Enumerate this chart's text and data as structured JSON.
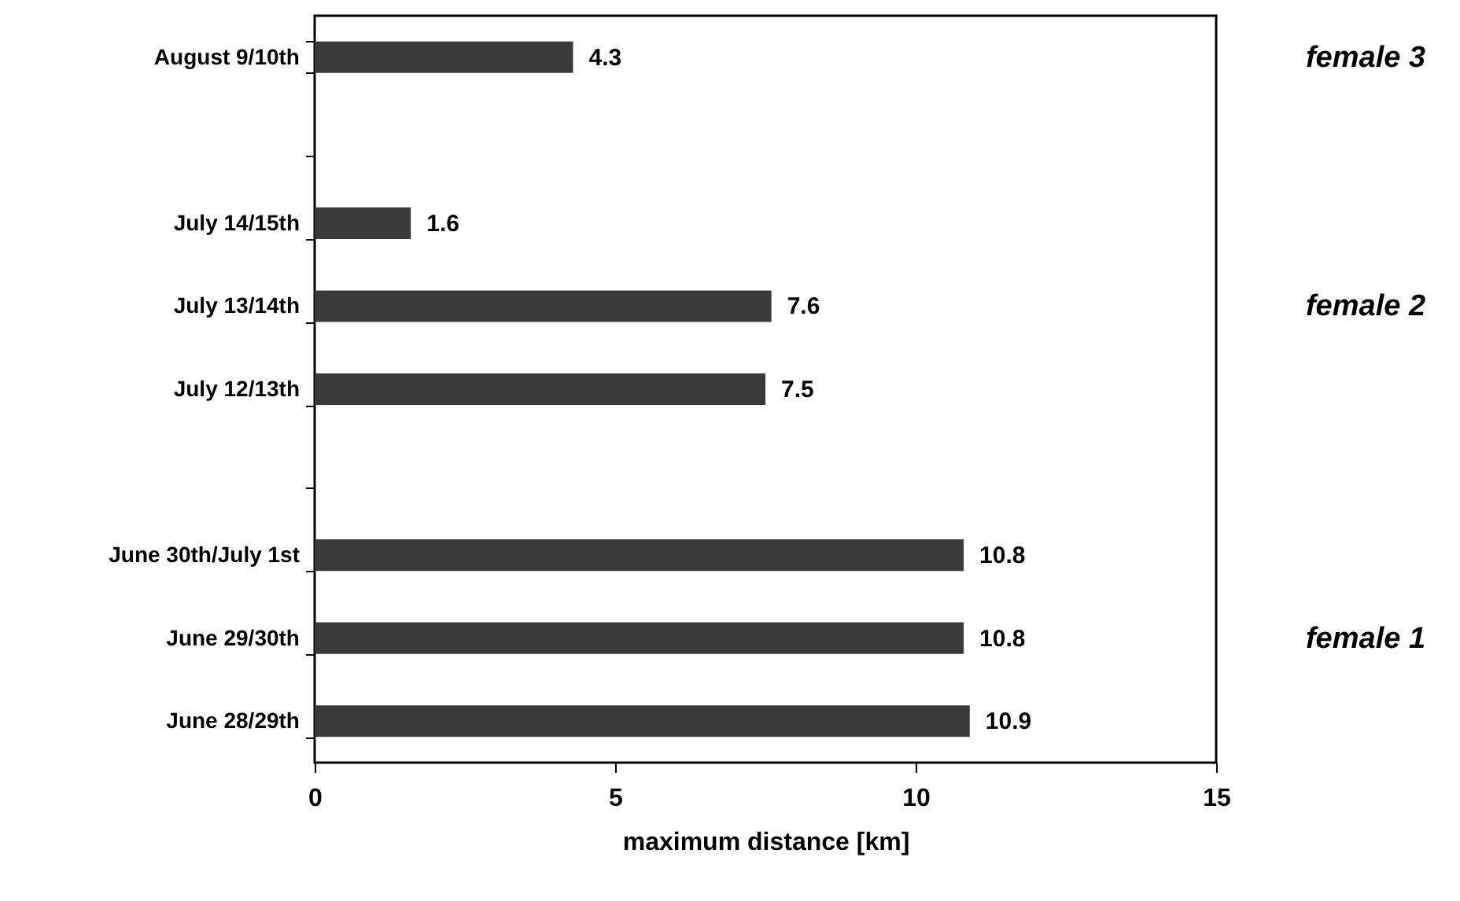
{
  "chart_data": {
    "type": "bar",
    "orientation": "horizontal",
    "xlabel": "maximum distance [km]",
    "categories": [
      "August 9/10th",
      null,
      "July 14/15th",
      "July 13/14th",
      "July 12/13th",
      null,
      "June 30th/July 1st",
      "June 29/30th",
      "June 28/29th"
    ],
    "values": [
      4.3,
      null,
      1.6,
      7.6,
      7.5,
      null,
      10.8,
      10.8,
      10.9
    ],
    "color": "#3a3a3a",
    "xlim": [
      0,
      15
    ],
    "xticks": [
      0,
      5,
      10,
      15
    ],
    "data_labels": true,
    "grid": false,
    "annotations": [
      "female 3",
      "female 2",
      "female 1"
    ]
  }
}
